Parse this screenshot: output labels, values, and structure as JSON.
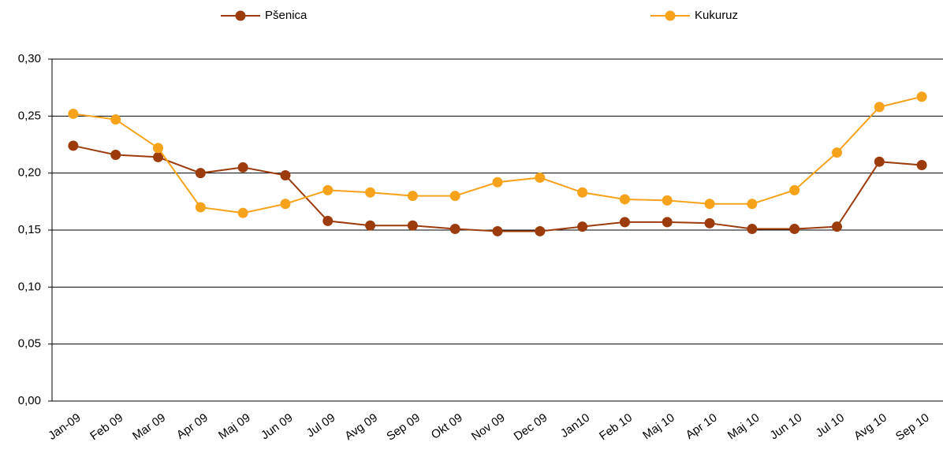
{
  "chart_data": {
    "type": "line",
    "categories": [
      "Jan-09",
      "Feb 09",
      "Mar 09",
      "Apr 09",
      "Maj 09",
      "Jun 09",
      "Jul 09",
      "Avg 09",
      "Sep 09",
      "Okt 09",
      "Nov 09",
      "Dec 09",
      "Jan10",
      "Feb 10",
      "Maj 10",
      "Apr 10",
      "Maj 10",
      "Jun 10",
      "Jul 10",
      "Avg 10",
      "Sep 10"
    ],
    "series": [
      {
        "name": "Pšenica",
        "color": "#9c3b0c",
        "values": [
          0.224,
          0.216,
          0.214,
          0.2,
          0.205,
          0.198,
          0.158,
          0.154,
          0.154,
          0.151,
          0.149,
          0.149,
          0.153,
          0.157,
          0.157,
          0.156,
          0.151,
          0.151,
          0.153,
          0.21,
          0.207
        ]
      },
      {
        "name": "Kukuruz",
        "color": "#f7a21b",
        "values": [
          0.252,
          0.247,
          0.222,
          0.17,
          0.165,
          0.173,
          0.185,
          0.183,
          0.18,
          0.18,
          0.192,
          0.196,
          0.183,
          0.177,
          0.176,
          0.173,
          0.173,
          0.185,
          0.218,
          0.258,
          0.267
        ]
      }
    ],
    "ylim": [
      0,
      0.3
    ],
    "yticks": [
      {
        "value": 0,
        "label": "0,00"
      },
      {
        "value": 0.05,
        "label": "0,05"
      },
      {
        "value": 0.1,
        "label": "0,10"
      },
      {
        "value": 0.15,
        "label": "0,15"
      },
      {
        "value": 0.2,
        "label": "0,20"
      },
      {
        "value": 0.25,
        "label": "0,25"
      },
      {
        "value": 0.3,
        "label": "0,30"
      }
    ],
    "grid": true
  }
}
